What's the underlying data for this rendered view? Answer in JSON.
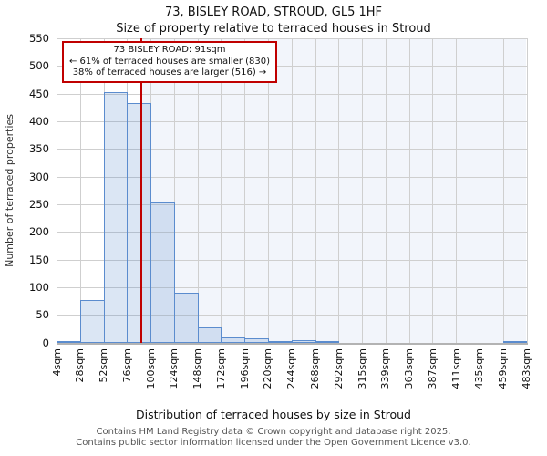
{
  "title": "73, BISLEY ROAD, STROUD, GL5 1HF",
  "subtitle": "Size of property relative to terraced houses in Stroud",
  "annotation": {
    "line1": "73 BISLEY ROAD: 91sqm",
    "line2": "← 61% of terraced houses are smaller (830)",
    "line3": "38% of terraced houses are larger (516) →"
  },
  "footer": {
    "line1": "Contains HM Land Registry data © Crown copyright and database right 2025.",
    "line2": "Contains public sector information licensed under the Open Government Licence v3.0."
  },
  "chart_data": {
    "type": "bar",
    "title": "73, BISLEY ROAD, STROUD, GL5 1HF",
    "subtitle": "Size of property relative to terraced houses in Stroud",
    "xlabel": "Distribution of terraced houses by size in Stroud",
    "ylabel": "Number of terraced properties",
    "x_tick_labels": [
      "4sqm",
      "28sqm",
      "52sqm",
      "76sqm",
      "100sqm",
      "124sqm",
      "148sqm",
      "172sqm",
      "196sqm",
      "220sqm",
      "244sqm",
      "268sqm",
      "292sqm",
      "315sqm",
      "339sqm",
      "363sqm",
      "387sqm",
      "411sqm",
      "435sqm",
      "459sqm",
      "483sqm"
    ],
    "bin_edges_sqm": [
      4,
      28,
      52,
      76,
      100,
      124,
      148,
      172,
      196,
      220,
      244,
      268,
      292,
      315,
      339,
      363,
      387,
      411,
      435,
      459,
      483
    ],
    "values": [
      2,
      77,
      453,
      433,
      253,
      90,
      27,
      9,
      7,
      3,
      5,
      3,
      0,
      0,
      0,
      0,
      0,
      0,
      0,
      2
    ],
    "ylim": [
      0,
      550
    ],
    "ytick_step": 50,
    "grid": true,
    "legend": false,
    "marker": {
      "label": "73 BISLEY ROAD",
      "value_sqm": 91,
      "smaller_pct": 61,
      "smaller_count": 830,
      "larger_pct": 38,
      "larger_count": 516
    },
    "colors": {
      "bar_fill": "#dce6f5",
      "bar_edge": "#5b8cce",
      "marker_line": "#c00000",
      "annotation_border": "#c00000",
      "gridline": "#cfcfcf",
      "shade_right_of_marker": "#f2f5fb"
    }
  }
}
